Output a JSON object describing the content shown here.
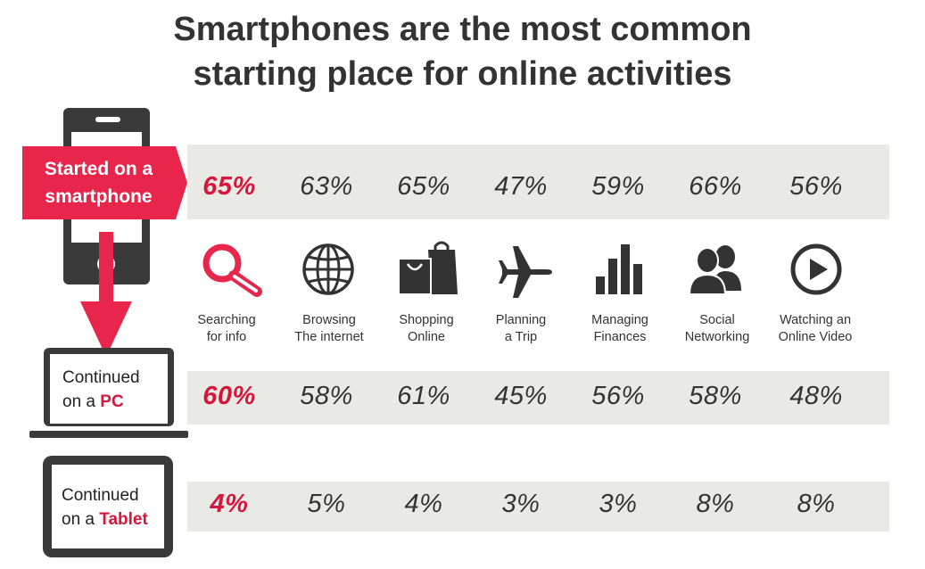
{
  "title_line1": "Smartphones are the most common",
  "title_line2": "starting place for online activities",
  "colors": {
    "accent": "#d6163b",
    "banner": "#e8254a",
    "band": "#e9e9e5",
    "device": "#3a3a3a"
  },
  "rows": {
    "smartphone": {
      "label_line1": "Started on a",
      "label_line2": "smartphone"
    },
    "pc": {
      "label_prefix": "Continued",
      "label_line2_prefix": "on a ",
      "label_accent": "PC"
    },
    "tablet": {
      "label_prefix": "Continued",
      "label_line2_prefix": "on a ",
      "label_accent": "Tablet"
    }
  },
  "activities": [
    {
      "line1": "Searching",
      "line2": "for info",
      "icon": "search-icon"
    },
    {
      "line1": "Browsing",
      "line2": "The internet",
      "icon": "globe-icon"
    },
    {
      "line1": "Shopping",
      "line2": "Online",
      "icon": "shopping-bag-icon"
    },
    {
      "line1": "Planning",
      "line2": "a Trip",
      "icon": "airplane-icon"
    },
    {
      "line1": "Managing",
      "line2": "Finances",
      "icon": "bar-chart-icon"
    },
    {
      "line1": "Social",
      "line2": "Networking",
      "icon": "people-icon"
    },
    {
      "line1": "Watching an",
      "line2": "Online Video",
      "icon": "play-icon"
    }
  ],
  "chart_data": {
    "type": "table",
    "title": "Smartphones are the most common starting place for online activities",
    "categories": [
      "Searching for info",
      "Browsing The internet",
      "Shopping Online",
      "Planning a Trip",
      "Managing Finances",
      "Social Networking",
      "Watching an Online Video"
    ],
    "series": [
      {
        "name": "Started on a smartphone",
        "values": [
          65,
          63,
          65,
          47,
          59,
          66,
          56
        ],
        "labels": [
          "65%",
          "63%",
          "65%",
          "47%",
          "59%",
          "66%",
          "56%"
        ]
      },
      {
        "name": "Continued on a PC",
        "values": [
          60,
          58,
          61,
          45,
          56,
          58,
          48
        ],
        "labels": [
          "60%",
          "58%",
          "61%",
          "45%",
          "56%",
          "58%",
          "48%"
        ]
      },
      {
        "name": "Continued on a Tablet",
        "values": [
          4,
          5,
          4,
          3,
          3,
          8,
          8
        ],
        "labels": [
          "4%",
          "5%",
          "4%",
          "3%",
          "3%",
          "8%",
          "8%"
        ]
      }
    ],
    "highlight_column": 0
  }
}
